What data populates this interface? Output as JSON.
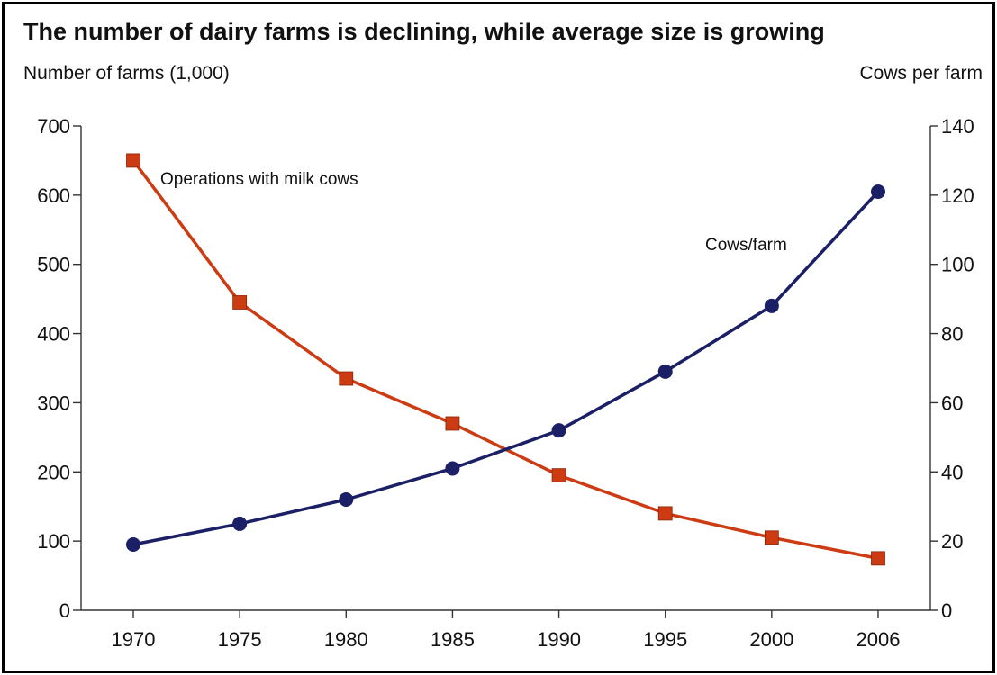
{
  "chart_data": {
    "type": "line",
    "title": "The number of dairy farms is declining, while average size is growing",
    "ylabel_left": "Number of farms (1,000)",
    "ylabel_right": "Cows per farm",
    "xlabel": "",
    "categories": [
      "1970",
      "1975",
      "1980",
      "1985",
      "1990",
      "1995",
      "2000",
      "2006"
    ],
    "ylim_left": [
      0,
      700
    ],
    "ylim_right": [
      0,
      140
    ],
    "yticks_left": [
      0,
      100,
      200,
      300,
      400,
      500,
      600,
      700
    ],
    "yticks_right": [
      0,
      20,
      40,
      60,
      80,
      100,
      120,
      140
    ],
    "grid": false,
    "series": [
      {
        "name": "Operations with milk cows",
        "axis": "left",
        "color": "#cc3b12",
        "marker": "square",
        "values": [
          650,
          445,
          335,
          270,
          195,
          140,
          105,
          75
        ]
      },
      {
        "name": "Cows/farm",
        "axis": "right",
        "color": "#1a1f66",
        "marker": "circle",
        "values": [
          19,
          25,
          32,
          41,
          52,
          69,
          88,
          121
        ]
      }
    ]
  }
}
